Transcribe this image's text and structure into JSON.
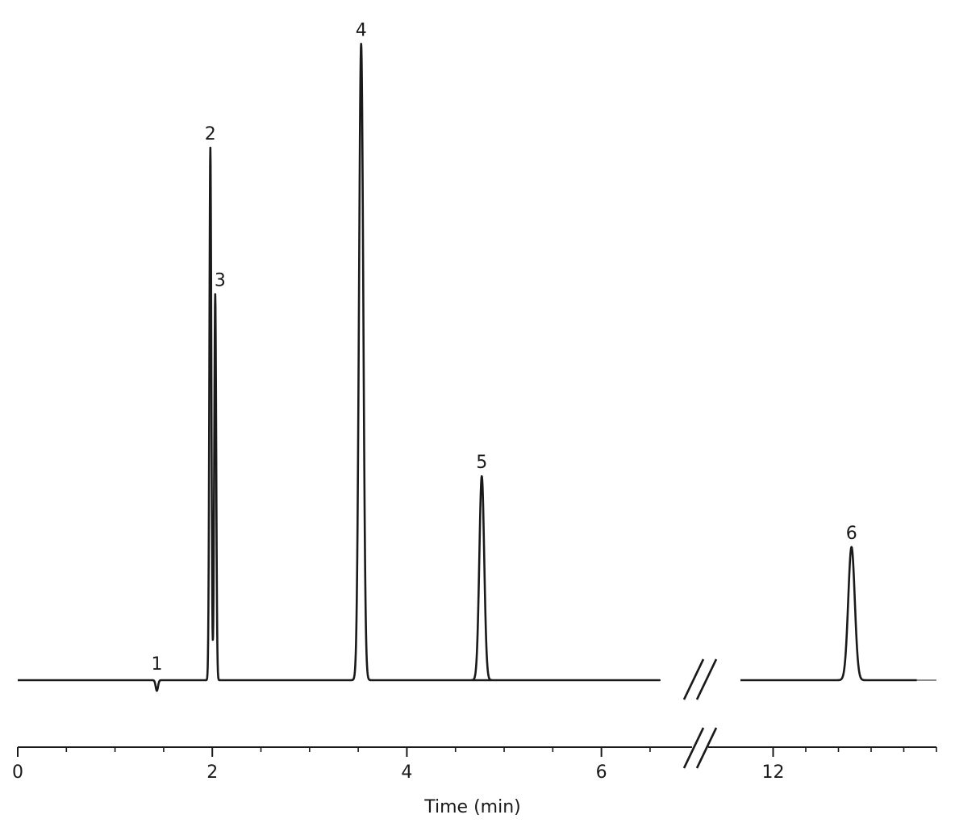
{
  "chart_data": {
    "type": "line",
    "title": "",
    "xlabel": "Time (min)",
    "ylabel": "",
    "grid": false,
    "axis_break": {
      "between": [
        6.6,
        11.5
      ],
      "marker": "double-slash"
    },
    "x_segments": [
      {
        "xlim": [
          0,
          6.6
        ]
      },
      {
        "xlim": [
          11.5,
          14.5
        ]
      }
    ],
    "x_ticks_major": [
      {
        "value": 0,
        "label": "0"
      },
      {
        "value": 2,
        "label": "2"
      },
      {
        "value": 4,
        "label": "4"
      },
      {
        "value": 6,
        "label": "6"
      },
      {
        "value": 12,
        "label": "12"
      }
    ],
    "x_ticks_minor": [
      0.5,
      1,
      1.5,
      2.5,
      3,
      3.5,
      4.5,
      5,
      5.5,
      6.5,
      12.5,
      13,
      13.5,
      14
    ],
    "baseline": 0,
    "peaks": [
      {
        "label": "1",
        "time": 1.43,
        "height": -2.0,
        "width": 0.012
      },
      {
        "label": "2",
        "time": 1.98,
        "height": 100,
        "width": 0.01
      },
      {
        "label": "3",
        "time": 2.03,
        "height": 72.5,
        "width": 0.01
      },
      {
        "label": "4",
        "time": 3.53,
        "height": 119.5,
        "width": 0.022
      },
      {
        "label": "5",
        "time": 4.77,
        "height": 38.3,
        "width": 0.025
      },
      {
        "label": "6",
        "time": 13.2,
        "height": 25.0,
        "width": 0.05
      }
    ]
  }
}
